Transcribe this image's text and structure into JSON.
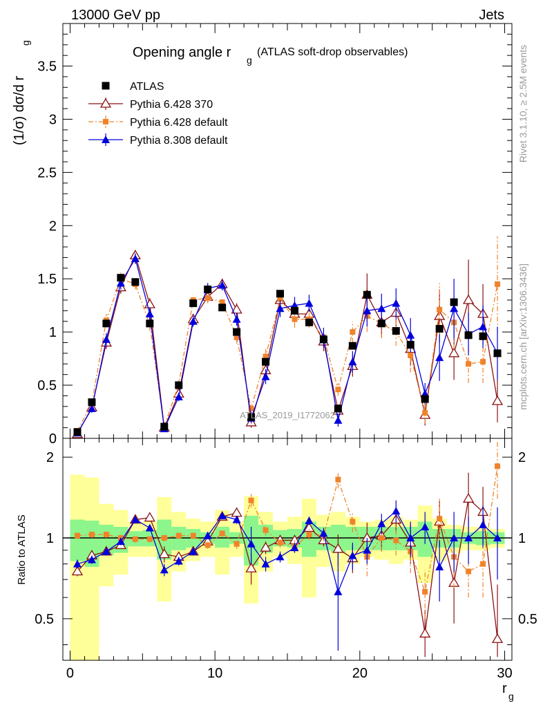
{
  "header": {
    "left": "13000 GeV pp",
    "right": "Jets",
    "side_top": "Rivet 3.1.10, ≥ 2.5M events",
    "side_bottom": "mcplots.cern.ch [arXiv:1306.3436]",
    "watermark": "ATLAS_2019_I1772062"
  },
  "chart_data": {
    "type": "scatter",
    "title_main": "Opening angle r",
    "title_sub": "g",
    "title_extra": "(ATLAS soft-drop observables)",
    "xlabel": "r",
    "xlabel_sub": "g",
    "ylabel": "(1/σ) dσ/d r",
    "ylabel_sub": "g",
    "ratio_ylabel": "Ratio to ATLAS",
    "xlim": [
      -0.5,
      30.5
    ],
    "ylim": [
      0,
      3.9
    ],
    "ratio_ylim": [
      0.35,
      2.35
    ],
    "x_ticks": [
      "0",
      "10",
      "20",
      "30"
    ],
    "y_ticks": [
      "0",
      "0.5",
      "1",
      "1.5",
      "2",
      "2.5",
      "3",
      "3.5"
    ],
    "ratio_ticks": [
      "0.5",
      "1",
      "2"
    ],
    "legend_position": "top-left",
    "series": [
      {
        "name": "ATLAS",
        "color": "#000000",
        "marker": "square",
        "x": [
          0.5,
          1.5,
          2.5,
          3.5,
          4.5,
          5.5,
          6.5,
          7.5,
          8.5,
          9.5,
          10.5,
          11.5,
          12.5,
          13.5,
          14.5,
          15.5,
          16.5,
          17.5,
          18.5,
          19.5,
          20.5,
          21.5,
          22.5,
          23.5,
          24.5,
          25.5,
          26.5,
          27.5,
          28.5,
          29.5
        ],
        "values": [
          0.06,
          0.34,
          1.08,
          1.51,
          1.47,
          1.08,
          0.11,
          0.5,
          1.27,
          1.4,
          1.23,
          1.0,
          0.2,
          0.72,
          1.36,
          1.2,
          1.09,
          0.93,
          0.28,
          0.87,
          1.35,
          1.08,
          1.01,
          0.88,
          0.37,
          1.03,
          1.28,
          0.97,
          0.96,
          0.8
        ]
      },
      {
        "name": "Pythia 6.428 370",
        "color": "#8b1010",
        "marker": "open-triangle",
        "dash": "solid",
        "x": [
          0.5,
          1.5,
          2.5,
          3.5,
          4.5,
          5.5,
          6.5,
          7.5,
          8.5,
          9.5,
          10.5,
          11.5,
          12.5,
          13.5,
          14.5,
          15.5,
          16.5,
          17.5,
          18.5,
          19.5,
          20.5,
          21.5,
          22.5,
          23.5,
          24.5,
          25.5,
          26.5,
          27.5,
          28.5,
          29.5
        ],
        "values": [
          0.04,
          0.29,
          0.9,
          1.42,
          1.72,
          1.26,
          0.1,
          0.42,
          1.12,
          1.33,
          1.45,
          1.21,
          0.15,
          0.64,
          1.3,
          1.17,
          1.17,
          0.91,
          0.26,
          0.68,
          1.35,
          1.09,
          1.18,
          0.84,
          0.22,
          1.15,
          0.8,
          1.3,
          1.17,
          0.35
        ],
        "err": [
          0.02,
          0.04,
          0.06,
          0.06,
          0.05,
          0.06,
          0.03,
          0.04,
          0.05,
          0.05,
          0.05,
          0.06,
          0.05,
          0.07,
          0.08,
          0.08,
          0.08,
          0.09,
          0.06,
          0.1,
          0.2,
          0.14,
          0.13,
          0.16,
          0.1,
          0.25,
          0.25,
          0.38,
          0.28,
          0.2
        ],
        "ratio": [
          0.75,
          0.86,
          0.89,
          0.94,
          1.17,
          1.19,
          0.87,
          0.85,
          0.89,
          0.97,
          1.2,
          1.24,
          0.77,
          0.92,
          0.98,
          0.98,
          1.09,
          0.98,
          0.91,
          0.84,
          1.0,
          1.02,
          1.17,
          0.96,
          0.44,
          1.15,
          0.68,
          1.4,
          1.25,
          0.42
        ],
        "ratio_err": [
          0.03,
          0.03,
          0.03,
          0.03,
          0.03,
          0.03,
          0.06,
          0.03,
          0.03,
          0.03,
          0.03,
          0.04,
          0.1,
          0.05,
          0.04,
          0.04,
          0.04,
          0.05,
          0.12,
          0.1,
          0.14,
          0.13,
          0.12,
          0.16,
          0.1,
          0.22,
          0.2,
          0.35,
          0.3,
          0.25
        ]
      },
      {
        "name": "Pythia 6.428 default",
        "color": "#f0832a",
        "marker": "filled-square",
        "dash": "dashdot",
        "x": [
          0.5,
          1.5,
          2.5,
          3.5,
          4.5,
          5.5,
          6.5,
          7.5,
          8.5,
          9.5,
          10.5,
          11.5,
          12.5,
          13.5,
          14.5,
          15.5,
          16.5,
          17.5,
          18.5,
          19.5,
          20.5,
          21.5,
          22.5,
          23.5,
          24.5,
          25.5,
          26.5,
          27.5,
          28.5,
          29.5
        ],
        "values": [
          0.07,
          0.33,
          1.11,
          1.5,
          1.45,
          1.07,
          0.11,
          0.51,
          1.3,
          1.32,
          1.28,
          0.95,
          0.28,
          0.77,
          1.31,
          1.12,
          1.12,
          0.95,
          0.46,
          1.0,
          1.15,
          1.08,
          1.0,
          0.78,
          0.24,
          1.21,
          1.09,
          0.7,
          0.72,
          1.45
        ],
        "err": [
          0.02,
          0.04,
          0.06,
          0.06,
          0.05,
          0.06,
          0.03,
          0.04,
          0.05,
          0.05,
          0.05,
          0.06,
          0.05,
          0.07,
          0.08,
          0.08,
          0.08,
          0.09,
          0.06,
          0.1,
          0.15,
          0.14,
          0.13,
          0.16,
          0.1,
          0.25,
          0.25,
          0.18,
          0.2,
          0.45
        ],
        "ratio": [
          1.02,
          1.03,
          1.03,
          1.0,
          0.99,
          0.99,
          1.0,
          1.02,
          1.02,
          0.94,
          1.04,
          0.95,
          1.38,
          1.07,
          0.96,
          0.93,
          1.03,
          1.02,
          1.65,
          1.15,
          0.85,
          1.0,
          0.98,
          0.89,
          0.63,
          1.18,
          0.85,
          0.75,
          0.8,
          1.85
        ],
        "ratio_err": [
          0.03,
          0.03,
          0.03,
          0.03,
          0.03,
          0.03,
          0.03,
          0.03,
          0.03,
          0.03,
          0.03,
          0.04,
          0.08,
          0.05,
          0.04,
          0.05,
          0.05,
          0.05,
          0.12,
          0.1,
          0.13,
          0.11,
          0.12,
          0.15,
          0.13,
          0.22,
          0.2,
          0.15,
          0.2,
          0.45
        ]
      },
      {
        "name": "Pythia 8.308 default",
        "color": "#0000dd",
        "marker": "filled-triangle",
        "dash": "solid",
        "x": [
          0.5,
          1.5,
          2.5,
          3.5,
          4.5,
          5.5,
          6.5,
          7.5,
          8.5,
          9.5,
          10.5,
          11.5,
          12.5,
          13.5,
          14.5,
          15.5,
          16.5,
          17.5,
          18.5,
          19.5,
          20.5,
          21.5,
          22.5,
          23.5,
          24.5,
          25.5,
          26.5,
          27.5,
          28.5,
          29.5
        ],
        "values": [
          0.05,
          0.28,
          0.93,
          1.46,
          1.69,
          1.17,
          0.09,
          0.39,
          1.1,
          1.41,
          1.44,
          1.12,
          0.19,
          0.58,
          1.22,
          1.25,
          1.27,
          0.95,
          0.17,
          0.72,
          1.2,
          1.22,
          1.27,
          0.97,
          0.42,
          0.76,
          1.22,
          0.98,
          1.05,
          0.8
        ],
        "err": [
          0.02,
          0.04,
          0.06,
          0.06,
          0.05,
          0.06,
          0.03,
          0.04,
          0.05,
          0.05,
          0.05,
          0.06,
          0.05,
          0.07,
          0.08,
          0.08,
          0.08,
          0.09,
          0.06,
          0.1,
          0.15,
          0.14,
          0.14,
          0.16,
          0.1,
          0.22,
          0.28,
          0.2,
          0.2,
          0.25
        ],
        "ratio": [
          0.8,
          0.83,
          0.89,
          0.97,
          1.17,
          1.09,
          0.76,
          0.82,
          0.89,
          1.02,
          1.21,
          1.17,
          0.95,
          0.8,
          0.85,
          0.92,
          1.16,
          1.04,
          0.63,
          0.86,
          0.9,
          1.13,
          1.26,
          1.0,
          1.1,
          0.78,
          1.0,
          1.0,
          1.12,
          1.0
        ],
        "ratio_err": [
          0.03,
          0.03,
          0.03,
          0.03,
          0.03,
          0.03,
          0.04,
          0.03,
          0.03,
          0.03,
          0.03,
          0.04,
          0.15,
          0.05,
          0.04,
          0.04,
          0.04,
          0.05,
          0.25,
          0.1,
          0.1,
          0.1,
          0.12,
          0.15,
          0.15,
          0.2,
          0.25,
          0.2,
          0.2,
          0.3
        ]
      }
    ],
    "ratio_band_inner": [
      [
        0.82,
        1.17
      ],
      [
        0.78,
        1.16
      ],
      [
        0.86,
        1.12
      ],
      [
        0.88,
        1.1
      ],
      [
        0.93,
        1.06
      ],
      [
        0.93,
        1.07
      ],
      [
        0.83,
        1.17
      ],
      [
        0.9,
        1.1
      ],
      [
        0.92,
        1.08
      ],
      [
        0.95,
        1.05
      ],
      [
        0.92,
        1.1
      ],
      [
        0.95,
        1.05
      ],
      [
        0.79,
        1.21
      ],
      [
        0.88,
        1.12
      ],
      [
        0.93,
        1.07
      ],
      [
        0.92,
        1.08
      ],
      [
        0.85,
        1.15
      ],
      [
        0.9,
        1.1
      ],
      [
        0.88,
        1.12
      ],
      [
        0.9,
        1.1
      ],
      [
        0.9,
        1.1
      ],
      [
        0.9,
        1.1
      ],
      [
        0.9,
        1.1
      ],
      [
        0.9,
        1.1
      ],
      [
        0.85,
        1.15
      ],
      [
        0.92,
        1.08
      ],
      [
        0.92,
        1.08
      ],
      [
        0.95,
        1.05
      ],
      [
        0.94,
        1.06
      ],
      [
        0.95,
        1.05
      ]
    ],
    "ratio_band_outer": [
      [
        0.34,
        1.72
      ],
      [
        0.34,
        1.68
      ],
      [
        0.66,
        1.34
      ],
      [
        0.73,
        1.27
      ],
      [
        0.85,
        1.15
      ],
      [
        0.85,
        1.15
      ],
      [
        0.58,
        1.42
      ],
      [
        0.75,
        1.25
      ],
      [
        0.82,
        1.18
      ],
      [
        0.85,
        1.15
      ],
      [
        0.73,
        1.27
      ],
      [
        0.85,
        1.15
      ],
      [
        0.57,
        1.43
      ],
      [
        0.75,
        1.25
      ],
      [
        0.85,
        1.15
      ],
      [
        0.8,
        1.2
      ],
      [
        0.6,
        1.4
      ],
      [
        0.78,
        1.22
      ],
      [
        0.75,
        1.25
      ],
      [
        0.8,
        1.2
      ],
      [
        0.85,
        1.15
      ],
      [
        0.83,
        1.17
      ],
      [
        0.8,
        1.2
      ],
      [
        0.83,
        1.17
      ],
      [
        0.68,
        1.32
      ],
      [
        0.82,
        1.18
      ],
      [
        0.88,
        1.12
      ],
      [
        0.9,
        1.1
      ],
      [
        0.9,
        1.1
      ],
      [
        0.92,
        1.08
      ]
    ]
  }
}
